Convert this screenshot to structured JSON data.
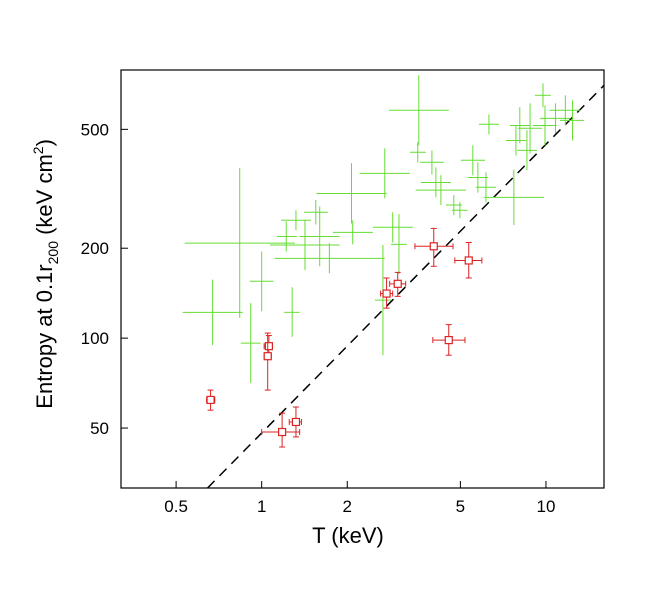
{
  "chart_data": {
    "type": "scatter",
    "x_label": "T (keV)",
    "y_label_parts": [
      "Entropy at 0.1r",
      "200",
      " (keV cm",
      "2",
      ")"
    ],
    "log_x": true,
    "log_y": true,
    "xlim": [
      0.32,
      16
    ],
    "ylim": [
      31.5,
      790
    ],
    "xticks": [
      0.5,
      1,
      2,
      5,
      10
    ],
    "yticks": [
      50,
      100,
      200,
      500
    ],
    "reference_line": {
      "x": [
        0.645,
        16
      ],
      "y": [
        31.5,
        702
      ],
      "color": "#000000",
      "dashed": true
    },
    "series": [
      {
        "color": "#66dd33",
        "marker": "cross",
        "x": [
          0.672,
          0.837,
          1.0,
          0.915,
          1.22,
          1.32,
          1.42,
          1.6,
          1.55,
          1.28,
          1.73,
          2.09,
          2.07,
          2.71,
          2.67,
          3.04,
          2.89,
          3.57,
          3.54,
          4.1,
          4.27,
          3.97,
          4.74,
          5.53,
          5.76,
          6.3,
          6.15,
          7.71,
          7.84,
          8.09,
          8.57,
          8.79,
          9.76,
          9.92,
          10.8,
          11.7,
          12.4,
          4.98
        ],
        "x_low": [
          0.527,
          0.536,
          0.907,
          0.844,
          1.13,
          1.17,
          1.07,
          1.36,
          1.41,
          1.2,
          1.11,
          1.78,
          1.56,
          2.21,
          2.5,
          2.85,
          2.46,
          2.8,
          3.32,
          3.63,
          3.48,
          3.6,
          4.45,
          5.02,
          5.3,
          5.81,
          5.67,
          6.05,
          7.23,
          7.47,
          7.91,
          7.97,
          9.15,
          9.0,
          9.52,
          10.3,
          11.2,
          4.67
        ],
        "x_high": [
          0.857,
          1.31,
          1.1,
          0.992,
          1.33,
          1.49,
          1.88,
          1.88,
          1.71,
          1.36,
          2.71,
          2.46,
          2.75,
          3.32,
          2.85,
          3.24,
          3.4,
          4.55,
          3.78,
          4.63,
          5.23,
          4.37,
          5.06,
          6.1,
          6.25,
          6.83,
          6.67,
          9.84,
          8.51,
          8.79,
          9.29,
          9.68,
          10.4,
          10.9,
          12.2,
          13.2,
          13.6,
          5.3
        ],
        "y": [
          122,
          208,
          155,
          96.2,
          219,
          248,
          205,
          219,
          264,
          122,
          185,
          226,
          305,
          356,
          134,
          206,
          235,
          579,
          419,
          332,
          313,
          388,
          279,
          394,
          345,
          520,
          320,
          296,
          459,
          515,
          425,
          504,
          650,
          515,
          544,
          579,
          536,
          268
        ],
        "y_low": [
          94.8,
          117,
          123,
          70.8,
          195,
          230,
          169,
          174,
          240,
          101,
          165,
          206,
          242,
          294,
          87.7,
          164,
          209,
          442,
          388,
          296,
          279,
          353,
          258,
          351,
          307,
          481,
          285,
          239,
          409,
          449,
          365,
          415,
          593,
          442,
          485,
          515,
          459,
          252
        ],
        "y_high": [
          157,
          371,
          195,
          131,
          246,
          268,
          248,
          276,
          290,
          148,
          208,
          248,
          385,
          432,
          205,
          260,
          264,
          759,
          453,
          373,
          351,
          425,
          301,
          442,
          388,
          561,
          359,
          367,
          515,
          593,
          496,
          611,
          713,
          601,
          611,
          650,
          625,
          285
        ]
      },
      {
        "color": "#dd2222",
        "marker": "square",
        "x": [
          0.661,
          1.06,
          1.05,
          1.18,
          1.32,
          2.75,
          3.01,
          4.03,
          5.35,
          4.55
        ],
        "x_low": [
          0.64,
          1.02,
          1.02,
          1.0,
          1.25,
          2.62,
          2.82,
          3.46,
          4.78,
          4.0
        ],
        "x_high": [
          0.684,
          1.09,
          1.08,
          1.36,
          1.38,
          2.89,
          3.21,
          4.71,
          5.95,
          5.19
        ],
        "y": [
          62.1,
          94.0,
          87.0,
          48.5,
          52.4,
          141,
          152,
          203,
          182,
          98.5
        ],
        "y_low": [
          57.4,
          87.0,
          67.0,
          43.2,
          46.7,
          126,
          138,
          174,
          159,
          87.7
        ],
        "y_high": [
          67.0,
          102,
          104,
          56.1,
          58.8,
          159,
          166,
          233,
          209,
          111
        ]
      }
    ]
  }
}
